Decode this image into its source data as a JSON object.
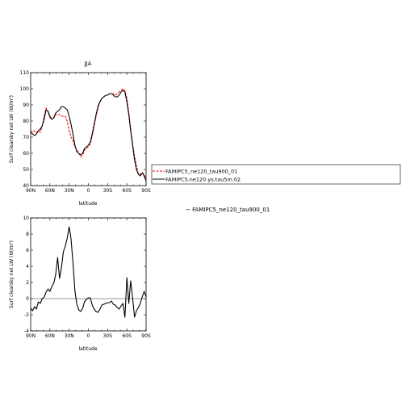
{
  "legend_entries": [
    {
      "label": "FAMIPC5_ne120_tau900_01",
      "color": "#ff0000",
      "dash": true
    },
    {
      "label": "FAMIPC5.ne120.ys.tau5m.02",
      "color": "#000000",
      "dash": false
    }
  ],
  "bottom_caption": "− FAMIPC5_ne120_tau900_01",
  "chart_data": [
    {
      "type": "line",
      "title": "JJA",
      "xlabel": "latitude",
      "ylabel": "Surf clearsky net LW (W/m²)",
      "x_ticks": [
        90,
        60,
        30,
        0,
        -30,
        -60,
        -90
      ],
      "x_tick_labels": [
        "90N",
        "60N",
        "30N",
        "0",
        "30S",
        "60S",
        "90S"
      ],
      "xlim": [
        90,
        -90
      ],
      "ylim": [
        40,
        110
      ],
      "y_ticks": [
        40,
        50,
        60,
        70,
        80,
        90,
        100,
        110
      ],
      "series": [
        {
          "name": "FAMIPC5_ne120_tau900_01",
          "color": "#ff0000",
          "dash": true,
          "x": [
            90,
            87,
            84,
            81,
            78,
            75,
            72,
            69,
            66,
            63,
            60,
            57,
            54,
            51,
            48,
            45,
            42,
            39,
            36,
            33,
            30,
            27,
            24,
            21,
            18,
            15,
            12,
            9,
            6,
            3,
            0,
            -3,
            -6,
            -9,
            -12,
            -15,
            -18,
            -21,
            -24,
            -27,
            -30,
            -33,
            -36,
            -39,
            -42,
            -45,
            -48,
            -51,
            -54,
            -57,
            -60,
            -63,
            -66,
            -69,
            -72,
            -75,
            -78,
            -81,
            -84,
            -87,
            -90
          ],
          "y": [
            74,
            73,
            74,
            73,
            74,
            73,
            77,
            83,
            88,
            86,
            82,
            82,
            82,
            84,
            84,
            84,
            83,
            83,
            83,
            80,
            74,
            70,
            68,
            64,
            62,
            60,
            58,
            59,
            62,
            63,
            64,
            66,
            71,
            77,
            83,
            88,
            92,
            94,
            95,
            96,
            96,
            97,
            97,
            97,
            96,
            97,
            98,
            99,
            100,
            99,
            94,
            85,
            75,
            66,
            58,
            52,
            47,
            47,
            48,
            47,
            44
          ]
        },
        {
          "name": "FAMIPC5.ne120.ys.tau5m.02",
          "color": "#000000",
          "dash": false,
          "x": [
            90,
            87,
            84,
            81,
            78,
            75,
            72,
            69,
            66,
            63,
            60,
            57,
            54,
            51,
            48,
            45,
            42,
            39,
            36,
            33,
            30,
            27,
            24,
            21,
            18,
            15,
            12,
            9,
            6,
            3,
            0,
            -3,
            -6,
            -9,
            -12,
            -15,
            -18,
            -21,
            -24,
            -27,
            -30,
            -33,
            -36,
            -39,
            -42,
            -45,
            -48,
            -51,
            -54,
            -57,
            -60,
            -63,
            -66,
            -69,
            -72,
            -75,
            -78,
            -81,
            -84,
            -87,
            -90
          ],
          "y": [
            73,
            72,
            71,
            72,
            74,
            75,
            77,
            81,
            87,
            86,
            83,
            81,
            82,
            85,
            86,
            87,
            89,
            89,
            88,
            87,
            83,
            78,
            72,
            65,
            61,
            60,
            59,
            60,
            63,
            64,
            65,
            67,
            72,
            78,
            84,
            89,
            92,
            94,
            95,
            96,
            96,
            97,
            97,
            96,
            95,
            95,
            96,
            98,
            99,
            98,
            92,
            84,
            74,
            65,
            56,
            50,
            47,
            46,
            48,
            46,
            43
          ]
        }
      ]
    },
    {
      "type": "line",
      "title": "",
      "xlabel": "latitude",
      "ylabel": "Surf clearsky net LW (W/m²)",
      "x_ticks": [
        90,
        60,
        30,
        0,
        -30,
        -60,
        -90
      ],
      "x_tick_labels": [
        "90N",
        "60N",
        "30N",
        "0",
        "30S",
        "60S",
        "90S"
      ],
      "xlim": [
        90,
        -90
      ],
      "ylim": [
        -4,
        10
      ],
      "y_ticks": [
        -4,
        -2,
        0,
        2,
        4,
        6,
        8,
        10
      ],
      "series": [
        {
          "color": "#000000",
          "dash": false,
          "x": [
            90,
            87,
            84,
            81,
            78,
            75,
            72,
            69,
            66,
            63,
            60,
            57,
            54,
            51,
            48,
            45,
            42,
            39,
            36,
            33,
            30,
            27,
            24,
            21,
            18,
            15,
            12,
            9,
            6,
            3,
            0,
            -3,
            -6,
            -9,
            -12,
            -15,
            -18,
            -21,
            -24,
            -27,
            -30,
            -33,
            -36,
            -39,
            -42,
            -45,
            -48,
            -51,
            -54,
            -57,
            -60,
            -63,
            -66,
            -69,
            -72,
            -75,
            -78,
            -81,
            -84,
            -87,
            -90
          ],
          "y": [
            -1.2,
            -1.5,
            -1.0,
            -1.3,
            -0.4,
            -0.6,
            0.0,
            0.2,
            0.8,
            1.2,
            0.9,
            1.5,
            1.9,
            3.0,
            5.1,
            2.5,
            3.8,
            5.8,
            6.5,
            7.5,
            8.9,
            7.4,
            4.5,
            1.0,
            -0.7,
            -1.4,
            -1.6,
            -1.2,
            -0.4,
            -0.1,
            0.1,
            0.1,
            -0.8,
            -1.3,
            -1.6,
            -1.7,
            -1.3,
            -0.8,
            -0.7,
            -0.6,
            -0.5,
            -0.5,
            -0.3,
            -0.7,
            -0.8,
            -1.1,
            -1.3,
            -0.9,
            -0.6,
            -2.3,
            2.6,
            -0.6,
            2.2,
            0.1,
            -2.3,
            -1.5,
            -1.1,
            -0.6,
            0.2,
            0.9,
            0.2
          ]
        }
      ]
    }
  ]
}
